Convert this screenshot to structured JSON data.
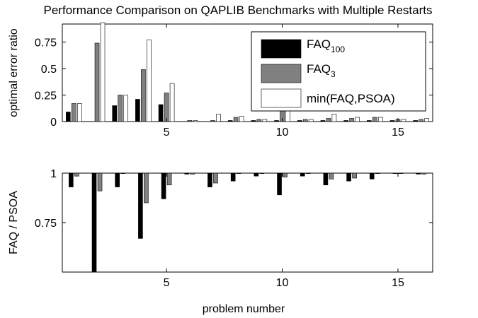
{
  "colors": {
    "faq100": "#000000",
    "faq3": "#808080",
    "min": "#ffffff"
  },
  "chart_data": [
    {
      "type": "bar",
      "title": "Performance Comparison on QAPLIB Benchmarks with Multiple Restarts",
      "xlabel": "",
      "ylabel": "optimal error ratio",
      "xlim": [
        0.5,
        16.5
      ],
      "ylim": [
        0,
        0.92
      ],
      "xticks": [
        5,
        10,
        15
      ],
      "xtick_labels": [
        "5",
        "10",
        "15"
      ],
      "yticks": [
        0,
        0.25,
        0.5,
        0.75
      ],
      "ytick_labels": [
        "0",
        "0.25",
        "0.5",
        "0.75"
      ],
      "legend": {
        "placement": "top-right",
        "entries": [
          {
            "series": "faq100",
            "label": "FAQ",
            "sub": "100"
          },
          {
            "series": "faq3",
            "label": "FAQ",
            "sub": "3"
          },
          {
            "series": "min",
            "label": "min(FAQ,PSOA)",
            "sub": ""
          }
        ]
      },
      "categories": [
        1,
        2,
        3,
        4,
        5,
        6,
        7,
        8,
        9,
        10,
        11,
        12,
        13,
        14,
        15,
        16
      ],
      "series": [
        {
          "key": "faq100",
          "values": [
            0.09,
            0.0,
            0.15,
            0.21,
            0.16,
            0.0,
            0.0,
            0.01,
            0.01,
            0.01,
            0.01,
            0.01,
            0.01,
            0.01,
            0.01,
            0.01
          ]
        },
        {
          "key": "faq3",
          "values": [
            0.17,
            0.74,
            0.25,
            0.49,
            0.27,
            0.01,
            0.01,
            0.04,
            0.02,
            0.11,
            0.02,
            0.03,
            0.03,
            0.04,
            0.02,
            0.02
          ]
        },
        {
          "key": "min",
          "values": [
            0.17,
            0.95,
            0.25,
            0.77,
            0.36,
            0.01,
            0.07,
            0.05,
            0.02,
            0.11,
            0.02,
            0.07,
            0.04,
            0.04,
            0.02,
            0.03
          ]
        }
      ]
    },
    {
      "type": "bar",
      "title": "",
      "xlabel": "problem number",
      "ylabel": "FAQ / PSOA",
      "xlim": [
        0.5,
        16.5
      ],
      "ylim": [
        0.5,
        1.0
      ],
      "baseline": 1.0,
      "xticks": [
        5,
        10,
        15
      ],
      "xtick_labels": [
        "5",
        "10",
        "15"
      ],
      "yticks": [
        0.75,
        1.0
      ],
      "ytick_labels": [
        "0.75",
        "1"
      ],
      "categories": [
        1,
        2,
        3,
        4,
        5,
        6,
        7,
        8,
        9,
        10,
        11,
        12,
        13,
        14,
        15,
        16
      ],
      "series": [
        {
          "key": "faq100",
          "values": [
            0.93,
            0.5,
            0.93,
            0.67,
            0.87,
            0.995,
            0.93,
            0.96,
            0.985,
            0.89,
            0.985,
            0.94,
            0.96,
            0.97,
            1.0,
            0.995
          ]
        },
        {
          "key": "faq3",
          "values": [
            0.985,
            0.91,
            1.0,
            0.85,
            0.94,
            0.995,
            0.95,
            1.0,
            1.0,
            0.98,
            1.0,
            0.97,
            0.975,
            1.0,
            1.0,
            0.995
          ]
        }
      ]
    }
  ]
}
